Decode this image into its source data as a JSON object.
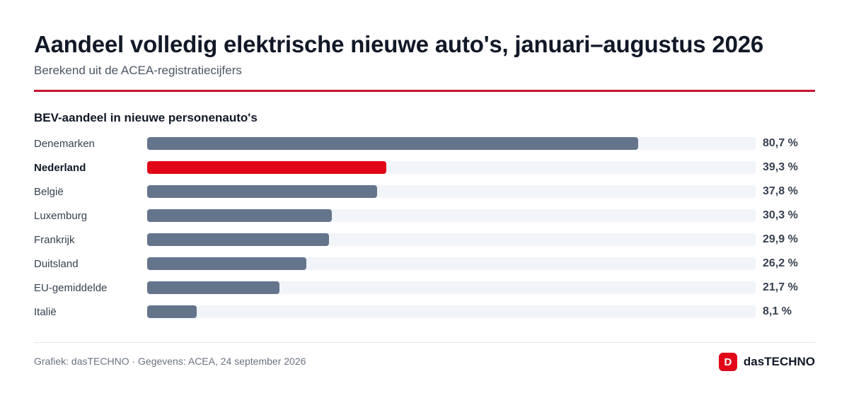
{
  "header": {
    "title": "Aandeel volledig elektrische nieuwe auto's, januari–augustus 2026",
    "subtitle": "Berekend uit de ACEA-registratiecijfers"
  },
  "chart_data": {
    "type": "bar",
    "orientation": "horizontal",
    "title": "BEV-aandeel in nieuwe personenauto's",
    "xlabel": "",
    "ylabel": "",
    "xlim": [
      0,
      100
    ],
    "unit": "%",
    "grid": false,
    "highlight_color": "#e10718",
    "bar_color": "#64748b",
    "categories": [
      "Denemarken",
      "Nederland",
      "België",
      "Luxemburg",
      "Frankrijk",
      "Duitsland",
      "EU-gemiddelde",
      "Italië"
    ],
    "values": [
      80.7,
      39.3,
      37.8,
      30.3,
      29.9,
      26.2,
      21.7,
      8.1
    ],
    "value_labels": [
      "80,7 %",
      "39,3 %",
      "37,8 %",
      "30,3 %",
      "29,9 %",
      "26,2 %",
      "21,7 %",
      "8,1 %"
    ],
    "highlight": "Nederland"
  },
  "footer": {
    "source": "Grafiek: dasTECHNO · Gegevens: ACEA, 24 september 2026",
    "brand_icon": "D",
    "brand_name": "dasTECHNO"
  }
}
